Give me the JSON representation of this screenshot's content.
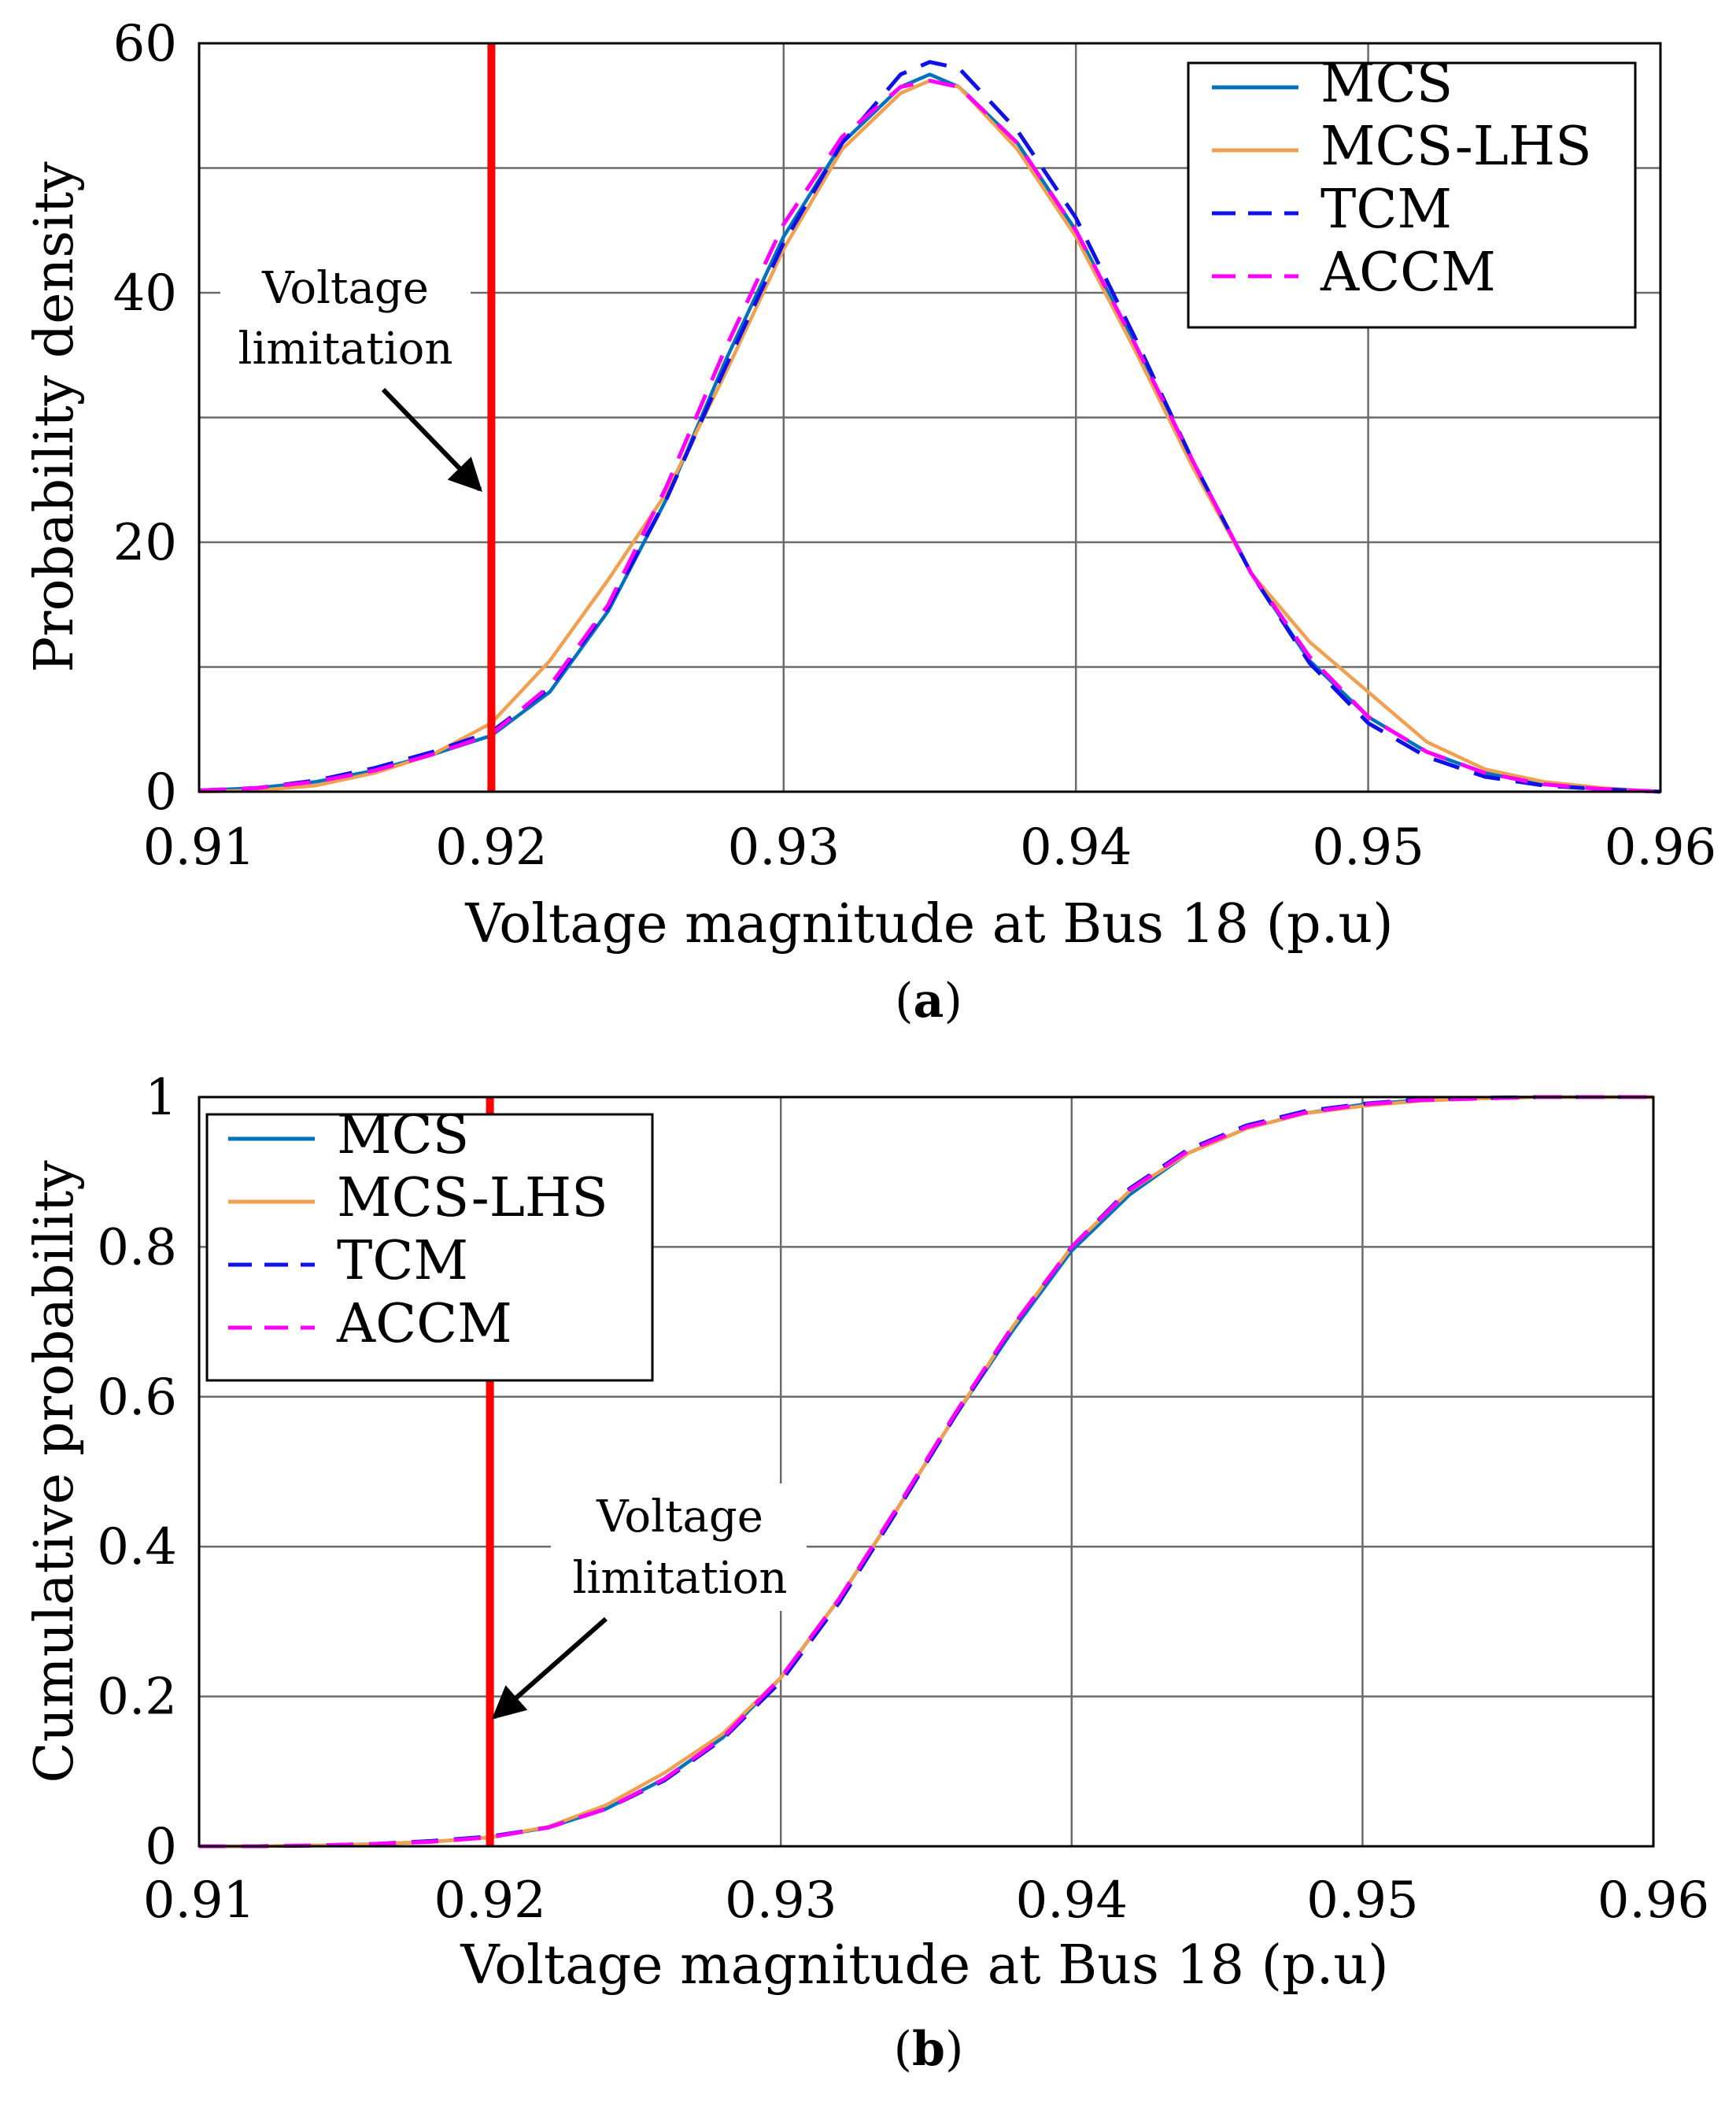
{
  "chart_data": [
    {
      "id": "a",
      "type": "line",
      "caption": {
        "open": "(",
        "letter": "a",
        "close": ")"
      },
      "xlabel": "Voltage magnitude at Bus 18 (p.u)",
      "ylabel": "Probability density",
      "xlim": [
        0.91,
        0.96
      ],
      "ylim": [
        0,
        60
      ],
      "xticks": [
        0.91,
        0.92,
        0.93,
        0.94,
        0.95,
        0.96
      ],
      "xtick_labels": [
        "0.91",
        "0.92",
        "0.93",
        "0.94",
        "0.95",
        "0.96"
      ],
      "yticks": [
        0,
        20,
        40,
        60
      ],
      "ytick_labels": [
        "0",
        "20",
        "40",
        "60"
      ],
      "ygrid": [
        0,
        10,
        20,
        30,
        40,
        50,
        60
      ],
      "grid": true,
      "legend_position": "top-right",
      "vline": {
        "x": 0.92,
        "color": "#ff0000"
      },
      "annotation": {
        "lines": [
          "Voltage",
          "limitation"
        ]
      },
      "x": [
        0.91,
        0.912,
        0.914,
        0.916,
        0.918,
        0.92,
        0.922,
        0.924,
        0.926,
        0.928,
        0.93,
        0.932,
        0.934,
        0.935,
        0.936,
        0.938,
        0.94,
        0.942,
        0.944,
        0.946,
        0.948,
        0.95,
        0.952,
        0.954,
        0.956,
        0.958,
        0.96
      ],
      "series": [
        {
          "name": "MCS",
          "color": "#0072bd",
          "dash": "",
          "values": [
            0.1,
            0.3,
            0.8,
            1.7,
            3.0,
            4.5,
            8.0,
            14.5,
            23.5,
            34.5,
            44.5,
            52.0,
            56.5,
            57.5,
            56.5,
            52.0,
            45.0,
            36.0,
            26.5,
            17.5,
            10.5,
            6.0,
            3.2,
            1.5,
            0.6,
            0.2,
            0.0
          ]
        },
        {
          "name": "MCS-LHS",
          "color": "#f0a050",
          "dash": "",
          "values": [
            0.0,
            0.1,
            0.5,
            1.5,
            3.0,
            5.5,
            10.5,
            17.0,
            24.0,
            33.5,
            43.5,
            51.5,
            56.0,
            57.0,
            56.5,
            51.5,
            44.5,
            35.5,
            26.0,
            17.5,
            12.0,
            8.0,
            4.0,
            1.8,
            0.8,
            0.3,
            0.0
          ]
        },
        {
          "name": "TCM",
          "color": "#1010e8",
          "dash": "34,20",
          "values": [
            0.1,
            0.3,
            0.9,
            1.9,
            3.2,
            4.8,
            8.3,
            14.8,
            23.5,
            34.0,
            44.0,
            52.0,
            57.5,
            58.5,
            58.0,
            53.0,
            46.0,
            36.5,
            26.5,
            17.5,
            10.3,
            5.5,
            2.8,
            1.2,
            0.5,
            0.2,
            0.0
          ]
        },
        {
          "name": "ACCM",
          "color": "#ff00ff",
          "dash": "34,20",
          "values": [
            0.1,
            0.3,
            0.8,
            1.7,
            3.0,
            4.6,
            8.5,
            15.0,
            24.5,
            35.5,
            45.5,
            52.5,
            56.5,
            57.0,
            56.5,
            52.0,
            45.0,
            36.0,
            26.5,
            17.5,
            10.8,
            6.0,
            3.2,
            1.5,
            0.6,
            0.2,
            0.0
          ]
        }
      ]
    },
    {
      "id": "b",
      "type": "line",
      "caption": {
        "open": "(",
        "letter": "b",
        "close": ")"
      },
      "xlabel": "Voltage magnitude at Bus 18 (p.u)",
      "ylabel": "Cumulative probability",
      "xlim": [
        0.91,
        0.96
      ],
      "ylim": [
        0,
        1
      ],
      "xticks": [
        0.91,
        0.92,
        0.93,
        0.94,
        0.95,
        0.96
      ],
      "xtick_labels": [
        "0.91",
        "0.92",
        "0.93",
        "0.94",
        "0.95",
        "0.96"
      ],
      "yticks": [
        0,
        0.2,
        0.4,
        0.6,
        0.8,
        1
      ],
      "ytick_labels": [
        "0",
        "0.2",
        "0.4",
        "0.6",
        "0.8",
        "1"
      ],
      "ygrid": [
        0,
        0.2,
        0.4,
        0.6,
        0.8,
        1
      ],
      "grid": true,
      "legend_position": "top-left",
      "vline": {
        "x": 0.92,
        "color": "#ff0000"
      },
      "annotation": {
        "lines": [
          "Voltage",
          "limitation"
        ]
      },
      "x": [
        0.91,
        0.912,
        0.914,
        0.916,
        0.918,
        0.92,
        0.922,
        0.924,
        0.926,
        0.928,
        0.93,
        0.932,
        0.934,
        0.936,
        0.938,
        0.94,
        0.942,
        0.944,
        0.946,
        0.948,
        0.95,
        0.952,
        0.954,
        0.956,
        0.958,
        0.96
      ],
      "series": [
        {
          "name": "MCS",
          "color": "#0072bd",
          "dash": "",
          "values": [
            0.0,
            0.0,
            0.001,
            0.003,
            0.006,
            0.012,
            0.025,
            0.05,
            0.09,
            0.145,
            0.225,
            0.33,
            0.45,
            0.575,
            0.69,
            0.795,
            0.87,
            0.925,
            0.958,
            0.978,
            0.99,
            0.996,
            0.998,
            1.0,
            1.0,
            1.0
          ]
        },
        {
          "name": "MCS-LHS",
          "color": "#f0a050",
          "dash": "",
          "values": [
            0.0,
            0.0,
            0.001,
            0.003,
            0.006,
            0.012,
            0.026,
            0.055,
            0.098,
            0.15,
            0.225,
            0.33,
            0.45,
            0.575,
            0.695,
            0.8,
            0.875,
            0.925,
            0.958,
            0.978,
            0.988,
            0.995,
            0.998,
            1.0,
            1.0,
            1.0
          ]
        },
        {
          "name": "TCM",
          "color": "#1010e8",
          "dash": "34,20",
          "values": [
            0.0,
            0.0,
            0.001,
            0.003,
            0.007,
            0.013,
            0.025,
            0.05,
            0.088,
            0.143,
            0.22,
            0.325,
            0.448,
            0.575,
            0.695,
            0.8,
            0.878,
            0.93,
            0.962,
            0.981,
            0.991,
            0.997,
            0.999,
            1.0,
            1.0,
            1.0
          ]
        },
        {
          "name": "ACCM",
          "color": "#ff00ff",
          "dash": "34,20",
          "values": [
            0.0,
            0.0,
            0.001,
            0.003,
            0.006,
            0.012,
            0.025,
            0.05,
            0.09,
            0.145,
            0.225,
            0.33,
            0.452,
            0.578,
            0.696,
            0.8,
            0.876,
            0.928,
            0.96,
            0.979,
            0.99,
            0.996,
            0.998,
            1.0,
            1.0,
            1.0
          ]
        }
      ]
    }
  ]
}
